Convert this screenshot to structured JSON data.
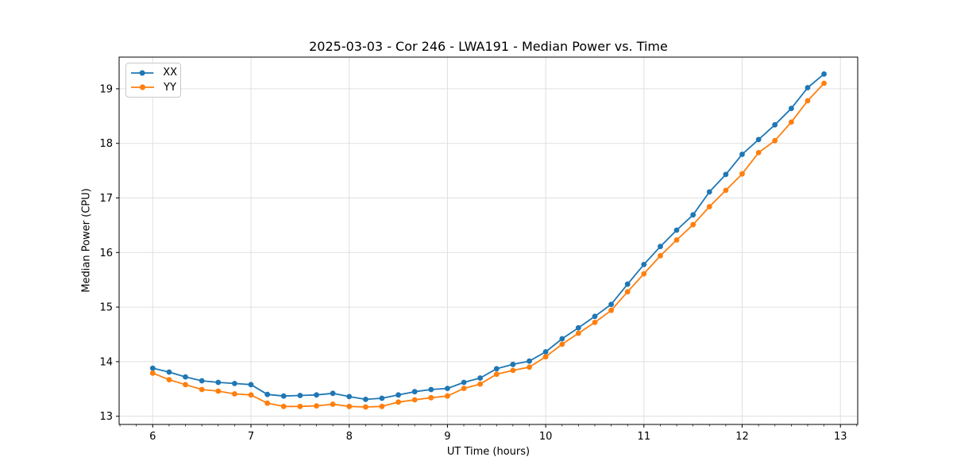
{
  "chart_data": {
    "type": "line",
    "title": "2025-03-03 - Cor 246 - LWA191 - Median Power vs. Time",
    "xlabel": "UT Time (hours)",
    "ylabel": "Median Power (CPU)",
    "xlim": [
      5.658,
      13.176
    ],
    "ylim": [
      12.85,
      19.58
    ],
    "xticks": [
      6,
      7,
      8,
      9,
      10,
      11,
      12,
      13
    ],
    "yticks": [
      13,
      14,
      15,
      16,
      17,
      18,
      19
    ],
    "x_minor_step": 0.1666667,
    "grid": true,
    "grid_color": "#e0e0e0",
    "axis_color": "#000000",
    "legend": {
      "position": "upper-left"
    },
    "x": [
      6.0,
      6.167,
      6.333,
      6.5,
      6.667,
      6.833,
      7.0,
      7.167,
      7.333,
      7.5,
      7.667,
      7.833,
      8.0,
      8.167,
      8.333,
      8.5,
      8.667,
      8.833,
      9.0,
      9.167,
      9.333,
      9.5,
      9.667,
      9.833,
      10.0,
      10.167,
      10.333,
      10.5,
      10.667,
      10.833,
      11.0,
      11.167,
      11.333,
      11.5,
      11.667,
      11.833,
      12.0,
      12.167,
      12.333,
      12.5,
      12.667,
      12.833
    ],
    "series": [
      {
        "name": "XX",
        "color": "#1f77b4",
        "values": [
          13.88,
          13.81,
          13.72,
          13.65,
          13.62,
          13.6,
          13.58,
          13.4,
          13.37,
          13.38,
          13.39,
          13.42,
          13.36,
          13.31,
          13.33,
          13.39,
          13.45,
          13.49,
          13.51,
          13.62,
          13.7,
          13.87,
          13.95,
          14.01,
          14.18,
          14.42,
          14.62,
          14.83,
          15.05,
          15.42,
          15.78,
          16.11,
          16.41,
          16.69,
          17.11,
          17.43,
          17.8,
          18.07,
          18.34,
          18.64,
          19.02,
          19.27
        ]
      },
      {
        "name": "YY",
        "color": "#ff7f0e",
        "values": [
          13.79,
          13.67,
          13.58,
          13.49,
          13.46,
          13.41,
          13.39,
          13.24,
          13.18,
          13.18,
          13.19,
          13.22,
          13.18,
          13.17,
          13.18,
          13.26,
          13.3,
          13.34,
          13.37,
          13.51,
          13.59,
          13.77,
          13.84,
          13.9,
          14.09,
          14.32,
          14.52,
          14.72,
          14.94,
          15.28,
          15.61,
          15.94,
          16.23,
          16.51,
          16.84,
          17.14,
          17.44,
          17.83,
          18.05,
          18.39,
          18.78,
          19.1
        ]
      }
    ]
  }
}
